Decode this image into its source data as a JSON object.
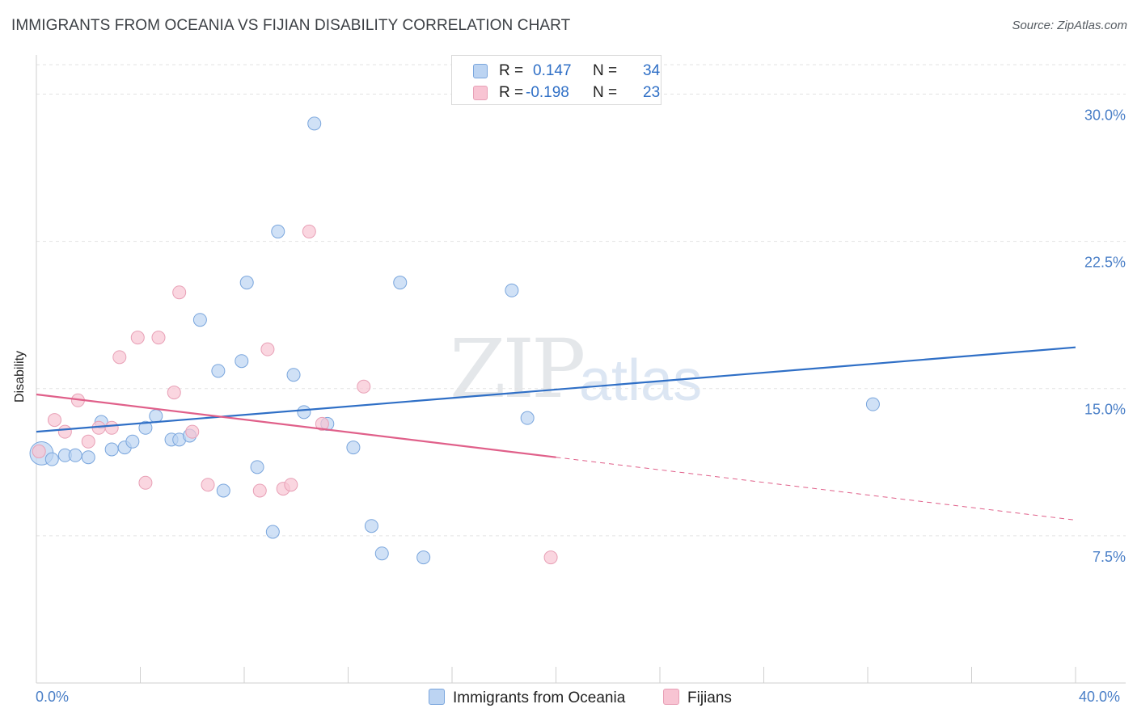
{
  "header": {
    "title": "IMMIGRANTS FROM OCEANIA VS FIJIAN DISABILITY CORRELATION CHART",
    "source": "Source: ZipAtlas.com"
  },
  "watermark": {
    "part1": "ZIP",
    "part2": "atlas"
  },
  "legend": {
    "series1": {
      "r_label": "R =",
      "r_value": "0.147",
      "n_label": "N =",
      "n_value": "34"
    },
    "series2": {
      "r_label": "R =",
      "r_value": "-0.198",
      "n_label": "N =",
      "n_value": "23"
    }
  },
  "bottom_legend": {
    "series1": "Immigrants from Oceania",
    "series2": "Fijians"
  },
  "colors": {
    "blue_fill": "#bcd4f2",
    "blue_stroke": "#7aa6dd",
    "blue_line": "#2f6fc6",
    "pink_fill": "#f8c4d3",
    "pink_stroke": "#e8a0b6",
    "pink_line": "#e0608a",
    "grid": "#e3e3e3",
    "tick_label": "#4a7fc7"
  },
  "chart_data": {
    "type": "scatter",
    "title": "IMMIGRANTS FROM OCEANIA VS FIJIAN DISABILITY CORRELATION CHART",
    "xlabel": "",
    "ylabel": "Disability",
    "xlim": [
      0,
      40
    ],
    "ylim": [
      0,
      31.5
    ],
    "x_tick_labels": [
      "0.0%",
      "40.0%"
    ],
    "y_ticks": [
      7.5,
      15.0,
      22.5,
      30.0
    ],
    "y_tick_labels": [
      "7.5%",
      "15.0%",
      "22.5%",
      "30.0%"
    ],
    "series": [
      {
        "name": "Immigrants from Oceania",
        "R": 0.147,
        "N": 34,
        "points": [
          [
            0.2,
            11.7,
            1.8
          ],
          [
            0.6,
            11.4,
            1
          ],
          [
            1.1,
            11.6,
            1
          ],
          [
            1.5,
            11.6,
            1
          ],
          [
            2.0,
            11.5,
            1
          ],
          [
            2.5,
            13.3,
            1
          ],
          [
            2.9,
            11.9,
            1
          ],
          [
            3.4,
            12.0,
            1
          ],
          [
            3.7,
            12.3,
            1
          ],
          [
            4.2,
            13.0,
            1
          ],
          [
            4.6,
            13.6,
            1
          ],
          [
            5.2,
            12.4,
            1
          ],
          [
            5.5,
            12.4,
            1
          ],
          [
            5.9,
            12.6,
            1
          ],
          [
            6.3,
            18.5,
            1
          ],
          [
            7.0,
            15.9,
            1
          ],
          [
            7.2,
            9.8,
            1
          ],
          [
            7.9,
            16.4,
            1
          ],
          [
            8.1,
            20.4,
            1
          ],
          [
            8.5,
            11.0,
            1
          ],
          [
            9.1,
            7.7,
            1
          ],
          [
            9.3,
            23.0,
            1
          ],
          [
            9.9,
            15.7,
            1
          ],
          [
            10.3,
            13.8,
            1
          ],
          [
            10.7,
            28.5,
            1
          ],
          [
            11.2,
            13.2,
            1
          ],
          [
            12.2,
            12.0,
            1
          ],
          [
            12.9,
            8.0,
            1
          ],
          [
            13.3,
            6.6,
            1
          ],
          [
            14.0,
            20.4,
            1
          ],
          [
            14.9,
            6.4,
            1
          ],
          [
            18.3,
            20.0,
            1
          ],
          [
            18.9,
            13.5,
            1
          ],
          [
            32.2,
            14.2,
            1
          ]
        ],
        "trend": {
          "x": [
            0,
            40
          ],
          "y": [
            12.8,
            17.1
          ]
        }
      },
      {
        "name": "Fijians",
        "R": -0.198,
        "N": 23,
        "points": [
          [
            0.1,
            11.8,
            1
          ],
          [
            0.7,
            13.4,
            1
          ],
          [
            1.1,
            12.8,
            1
          ],
          [
            1.6,
            14.4,
            1
          ],
          [
            2.0,
            12.3,
            1
          ],
          [
            2.4,
            13.0,
            1
          ],
          [
            2.9,
            13.0,
            1
          ],
          [
            3.2,
            16.6,
            1
          ],
          [
            4.2,
            10.2,
            1
          ],
          [
            3.9,
            17.6,
            1
          ],
          [
            4.7,
            17.6,
            1
          ],
          [
            5.3,
            14.8,
            1
          ],
          [
            5.5,
            19.9,
            1
          ],
          [
            6.0,
            12.8,
            1
          ],
          [
            6.6,
            10.1,
            1
          ],
          [
            8.6,
            9.8,
            1
          ],
          [
            8.9,
            17.0,
            1
          ],
          [
            9.5,
            9.9,
            1
          ],
          [
            9.8,
            10.1,
            1
          ],
          [
            10.5,
            23.0,
            1
          ],
          [
            11.0,
            13.2,
            1
          ],
          [
            12.6,
            15.1,
            1
          ],
          [
            19.8,
            6.4,
            1
          ]
        ],
        "trend": {
          "x": [
            0,
            20
          ],
          "y": [
            14.7,
            11.5
          ]
        },
        "trend_dashed": {
          "x": [
            20,
            40
          ],
          "y": [
            11.5,
            8.3
          ]
        }
      }
    ]
  }
}
